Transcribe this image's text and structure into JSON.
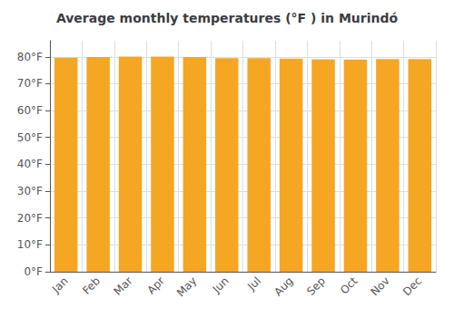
{
  "chart_data": {
    "type": "bar",
    "title": "Average monthly temperatures (°F ) in Murindó",
    "categories": [
      "Jan",
      "Feb",
      "Mar",
      "Apr",
      "May",
      "Jun",
      "Jul",
      "Aug",
      "Sep",
      "Oct",
      "Nov",
      "Dec"
    ],
    "values": [
      79.7,
      79.9,
      80.1,
      80.1,
      79.9,
      79.5,
      79.5,
      79.3,
      79.1,
      79.0,
      79.2,
      79.2
    ],
    "color": "#F5A623",
    "ylim": [
      0,
      86
    ],
    "yticks": [
      {
        "value": 0,
        "label": "0°F"
      },
      {
        "value": 10,
        "label": "10°F"
      },
      {
        "value": 20,
        "label": "20°F"
      },
      {
        "value": 30,
        "label": "30°F"
      },
      {
        "value": 40,
        "label": "40°F"
      },
      {
        "value": 50,
        "label": "50°F"
      },
      {
        "value": 60,
        "label": "60°F"
      },
      {
        "value": 70,
        "label": "70°F"
      },
      {
        "value": 80,
        "label": "80°F"
      }
    ],
    "grid": true
  }
}
